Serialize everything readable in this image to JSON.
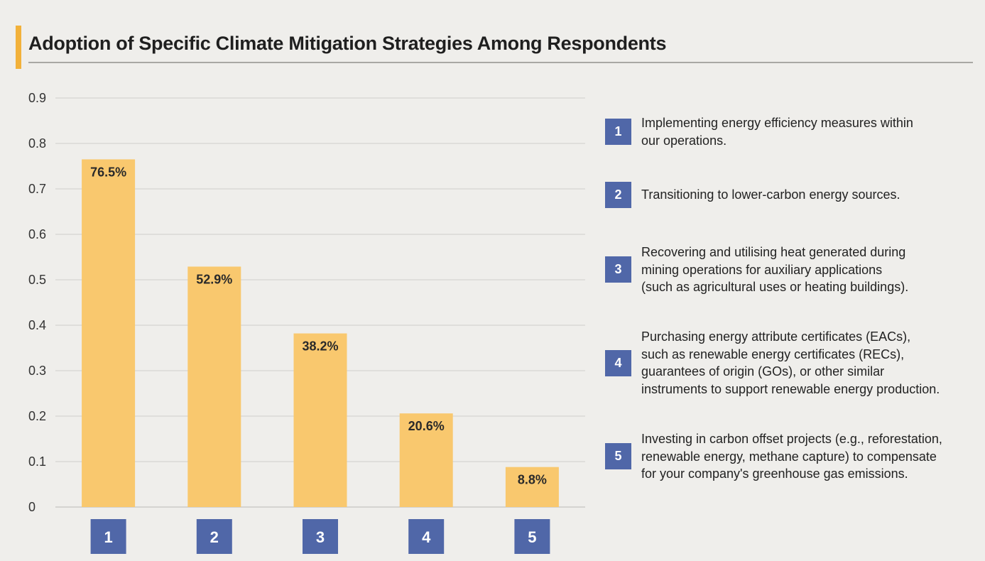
{
  "title": "Adoption of Specific Climate Mitigation Strategies Among Respondents",
  "colors": {
    "bar": "#f9c86e",
    "badge": "#5067a8",
    "accent": "#f2b13a",
    "grid": "#cfcecb"
  },
  "chart_data": {
    "type": "bar",
    "title": "Adoption of Specific Climate Mitigation Strategies Among Respondents",
    "xlabel": "",
    "ylabel": "",
    "categories": [
      "1",
      "2",
      "3",
      "4",
      "5"
    ],
    "values": [
      0.765,
      0.529,
      0.382,
      0.206,
      0.088
    ],
    "data_labels": [
      "76.5%",
      "52.9%",
      "38.2%",
      "20.6%",
      "8.8%"
    ],
    "ylim": [
      0,
      0.9
    ],
    "yticks": [
      "0",
      "0.1",
      "0.2",
      "0.3",
      "0.4",
      "0.5",
      "0.6",
      "0.7",
      "0.8",
      "0.9"
    ],
    "grid": true,
    "legend_position": "right"
  },
  "legend": [
    {
      "num": "1",
      "text": "Implementing energy efficiency measures within\nour operations."
    },
    {
      "num": "2",
      "text": "Transitioning to lower-carbon energy sources."
    },
    {
      "num": "3",
      "text": "Recovering and utilising heat generated during\nmining operations for auxiliary applications\n(such as agricultural uses or heating buildings)."
    },
    {
      "num": "4",
      "text": "Purchasing energy attribute certificates (EACs),\nsuch as renewable energy certificates (RECs),\nguarantees of origin (GOs), or other similar\ninstruments to support renewable energy production."
    },
    {
      "num": "5",
      "text": "Investing in carbon offset projects (e.g., reforestation,\nrenewable energy, methane capture) to compensate\nfor your company's greenhouse gas emissions."
    }
  ]
}
